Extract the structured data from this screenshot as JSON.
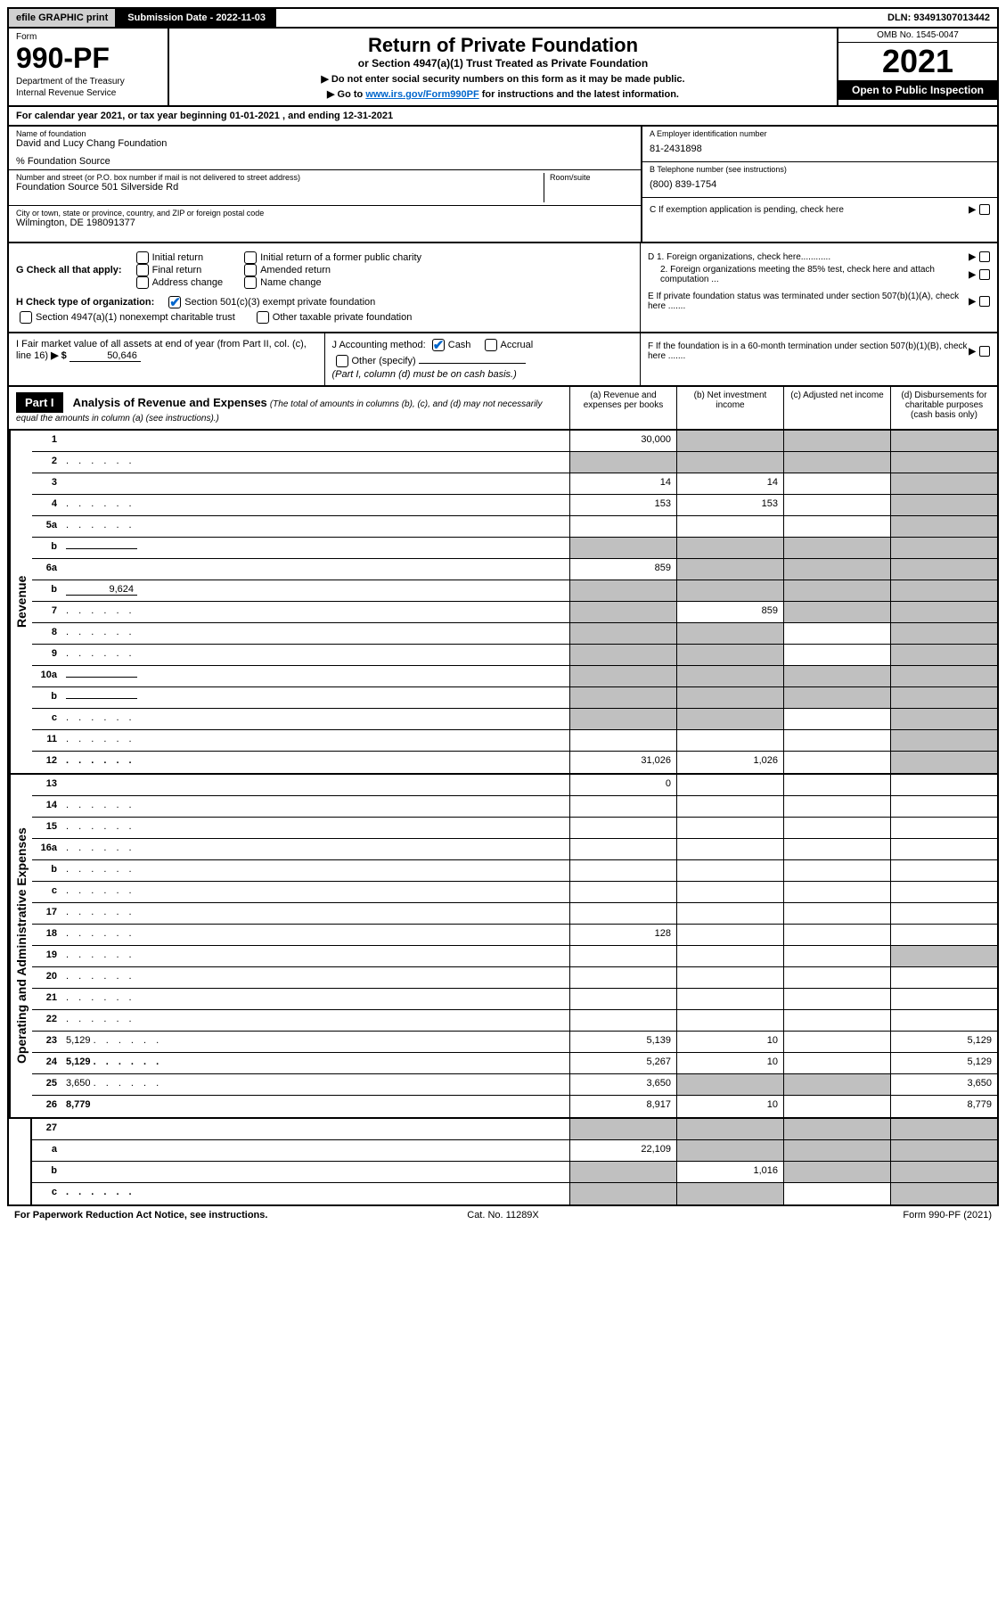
{
  "topbar": {
    "efile": "efile GRAPHIC print",
    "subdate_label": "Submission Date - 2022-11-03",
    "dln": "DLN: 93491307013442"
  },
  "header": {
    "form_label": "Form",
    "form_num": "990-PF",
    "dept1": "Department of the Treasury",
    "dept2": "Internal Revenue Service",
    "title": "Return of Private Foundation",
    "subtitle": "or Section 4947(a)(1) Trust Treated as Private Foundation",
    "instr1": "▶ Do not enter social security numbers on this form as it may be made public.",
    "instr2_pre": "▶ Go to ",
    "instr2_link": "www.irs.gov/Form990PF",
    "instr2_post": " for instructions and the latest information.",
    "omb": "OMB No. 1545-0047",
    "year": "2021",
    "open_insp": "Open to Public Inspection"
  },
  "cal_year": "For calendar year 2021, or tax year beginning 01-01-2021          , and ending 12-31-2021",
  "info": {
    "name_lbl": "Name of foundation",
    "name_val": "David and Lucy Chang Foundation",
    "co_lbl": "% Foundation Source",
    "addr_lbl": "Number and street (or P.O. box number if mail is not delivered to street address)",
    "addr_val": "Foundation Source 501 Silverside Rd",
    "room_lbl": "Room/suite",
    "city_lbl": "City or town, state or province, country, and ZIP or foreign postal code",
    "city_val": "Wilmington, DE  198091377",
    "a_lbl": "A Employer identification number",
    "a_val": "81-2431898",
    "b_lbl": "B Telephone number (see instructions)",
    "b_val": "(800) 839-1754",
    "c_lbl": "C If exemption application is pending, check here",
    "d1_lbl": "D 1. Foreign organizations, check here............",
    "d2_lbl": "2. Foreign organizations meeting the 85% test, check here and attach computation ...",
    "e_lbl": "E  If private foundation status was terminated under section 507(b)(1)(A), check here .......",
    "f_lbl": "F  If the foundation is in a 60-month termination under section 507(b)(1)(B), check here ......."
  },
  "g": {
    "label": "G Check all that apply:",
    "opts": [
      "Initial return",
      "Final return",
      "Address change",
      "Initial return of a former public charity",
      "Amended return",
      "Name change"
    ]
  },
  "h": {
    "label": "H Check type of organization:",
    "opt1": "Section 501(c)(3) exempt private foundation",
    "opt2": "Section 4947(a)(1) nonexempt charitable trust",
    "opt3": "Other taxable private foundation"
  },
  "i": {
    "label": "I Fair market value of all assets at end of year (from Part II, col. (c), line 16)",
    "arrow": "▶ $",
    "val": "50,646"
  },
  "j": {
    "label": "J Accounting method:",
    "cash": "Cash",
    "accrual": "Accrual",
    "other": "Other (specify)",
    "note": "(Part I, column (d) must be on cash basis.)"
  },
  "part1": {
    "hdr": "Part I",
    "title": "Analysis of Revenue and Expenses",
    "title_note": " (The total of amounts in columns (b), (c), and (d) may not necessarily equal the amounts in column (a) (see instructions).)",
    "col_a": "(a) Revenue and expenses per books",
    "col_b": "(b) Net investment income",
    "col_c": "(c) Adjusted net income",
    "col_d": "(d) Disbursements for charitable purposes (cash basis only)"
  },
  "side_labels": {
    "rev": "Revenue",
    "exp": "Operating and Administrative Expenses"
  },
  "rows": [
    {
      "n": "1",
      "d": "",
      "a": "30,000",
      "b": "",
      "c": "",
      "ga": false,
      "gb": true,
      "gc": true,
      "gd": true
    },
    {
      "n": "2",
      "d": "",
      "a": "",
      "b": "",
      "c": "",
      "ga": true,
      "gb": true,
      "gc": true,
      "gd": true,
      "dots": true
    },
    {
      "n": "3",
      "d": "",
      "a": "14",
      "b": "14",
      "c": "",
      "ga": false,
      "gb": false,
      "gc": false,
      "gd": true
    },
    {
      "n": "4",
      "d": "",
      "a": "153",
      "b": "153",
      "c": "",
      "ga": false,
      "gb": false,
      "gc": false,
      "gd": true,
      "dots": true
    },
    {
      "n": "5a",
      "d": "",
      "a": "",
      "b": "",
      "c": "",
      "ga": false,
      "gb": false,
      "gc": false,
      "gd": true,
      "dots": true
    },
    {
      "n": "b",
      "d": "",
      "a": "",
      "b": "",
      "c": "",
      "ga": true,
      "gb": true,
      "gc": true,
      "gd": true,
      "sub": true
    },
    {
      "n": "6a",
      "d": "",
      "a": "859",
      "b": "",
      "c": "",
      "ga": false,
      "gb": true,
      "gc": true,
      "gd": true
    },
    {
      "n": "b",
      "d": "",
      "a": "",
      "b": "",
      "c": "",
      "ga": true,
      "gb": true,
      "gc": true,
      "gd": true,
      "sub": true,
      "subval": "9,624"
    },
    {
      "n": "7",
      "d": "",
      "a": "",
      "b": "859",
      "c": "",
      "ga": true,
      "gb": false,
      "gc": true,
      "gd": true,
      "dots": true
    },
    {
      "n": "8",
      "d": "",
      "a": "",
      "b": "",
      "c": "",
      "ga": true,
      "gb": true,
      "gc": false,
      "gd": true,
      "dots": true
    },
    {
      "n": "9",
      "d": "",
      "a": "",
      "b": "",
      "c": "",
      "ga": true,
      "gb": true,
      "gc": false,
      "gd": true,
      "dots": true
    },
    {
      "n": "10a",
      "d": "",
      "a": "",
      "b": "",
      "c": "",
      "ga": true,
      "gb": true,
      "gc": true,
      "gd": true,
      "sub": true
    },
    {
      "n": "b",
      "d": "",
      "a": "",
      "b": "",
      "c": "",
      "ga": true,
      "gb": true,
      "gc": true,
      "gd": true,
      "sub": true,
      "dots": true
    },
    {
      "n": "c",
      "d": "",
      "a": "",
      "b": "",
      "c": "",
      "ga": true,
      "gb": true,
      "gc": false,
      "gd": true,
      "dots": true
    },
    {
      "n": "11",
      "d": "",
      "a": "",
      "b": "",
      "c": "",
      "ga": false,
      "gb": false,
      "gc": false,
      "gd": true,
      "dots": true
    },
    {
      "n": "12",
      "d": "",
      "a": "31,026",
      "b": "1,026",
      "c": "",
      "ga": false,
      "gb": false,
      "gc": false,
      "gd": true,
      "bold": true,
      "dots": true
    }
  ],
  "exp_rows": [
    {
      "n": "13",
      "d": "",
      "a": "0",
      "b": "",
      "c": "",
      "ga": false,
      "gb": false,
      "gc": false,
      "gd": false
    },
    {
      "n": "14",
      "d": "",
      "a": "",
      "b": "",
      "c": "",
      "ga": false,
      "gb": false,
      "gc": false,
      "gd": false,
      "dots": true
    },
    {
      "n": "15",
      "d": "",
      "a": "",
      "b": "",
      "c": "",
      "ga": false,
      "gb": false,
      "gc": false,
      "gd": false,
      "dots": true
    },
    {
      "n": "16a",
      "d": "",
      "a": "",
      "b": "",
      "c": "",
      "ga": false,
      "gb": false,
      "gc": false,
      "gd": false,
      "dots": true
    },
    {
      "n": "b",
      "d": "",
      "a": "",
      "b": "",
      "c": "",
      "ga": false,
      "gb": false,
      "gc": false,
      "gd": false,
      "dots": true
    },
    {
      "n": "c",
      "d": "",
      "a": "",
      "b": "",
      "c": "",
      "ga": false,
      "gb": false,
      "gc": false,
      "gd": false,
      "dots": true
    },
    {
      "n": "17",
      "d": "",
      "a": "",
      "b": "",
      "c": "",
      "ga": false,
      "gb": false,
      "gc": false,
      "gd": false,
      "dots": true
    },
    {
      "n": "18",
      "d": "",
      "a": "128",
      "b": "",
      "c": "",
      "ga": false,
      "gb": false,
      "gc": false,
      "gd": false,
      "dots": true
    },
    {
      "n": "19",
      "d": "",
      "a": "",
      "b": "",
      "c": "",
      "ga": false,
      "gb": false,
      "gc": false,
      "gd": true,
      "dots": true
    },
    {
      "n": "20",
      "d": "",
      "a": "",
      "b": "",
      "c": "",
      "ga": false,
      "gb": false,
      "gc": false,
      "gd": false,
      "dots": true
    },
    {
      "n": "21",
      "d": "",
      "a": "",
      "b": "",
      "c": "",
      "ga": false,
      "gb": false,
      "gc": false,
      "gd": false,
      "dots": true
    },
    {
      "n": "22",
      "d": "",
      "a": "",
      "b": "",
      "c": "",
      "ga": false,
      "gb": false,
      "gc": false,
      "gd": false,
      "dots": true
    },
    {
      "n": "23",
      "d": "5,129",
      "a": "5,139",
      "b": "10",
      "c": "",
      "ga": false,
      "gb": false,
      "gc": false,
      "gd": false,
      "dots": true
    },
    {
      "n": "24",
      "d": "5,129",
      "a": "5,267",
      "b": "10",
      "c": "",
      "ga": false,
      "gb": false,
      "gc": false,
      "gd": false,
      "bold": true,
      "dots": true
    },
    {
      "n": "25",
      "d": "3,650",
      "a": "3,650",
      "b": "",
      "c": "",
      "ga": false,
      "gb": true,
      "gc": true,
      "gd": false,
      "dots": true
    },
    {
      "n": "26",
      "d": "8,779",
      "a": "8,917",
      "b": "10",
      "c": "",
      "ga": false,
      "gb": false,
      "gc": false,
      "gd": false,
      "bold": true
    }
  ],
  "foot_rows": [
    {
      "n": "27",
      "d": "",
      "a": "",
      "b": "",
      "c": "",
      "ga": true,
      "gb": true,
      "gc": true,
      "gd": true
    },
    {
      "n": "a",
      "d": "",
      "a": "22,109",
      "b": "",
      "c": "",
      "ga": false,
      "gb": true,
      "gc": true,
      "gd": true,
      "bold": true
    },
    {
      "n": "b",
      "d": "",
      "a": "",
      "b": "1,016",
      "c": "",
      "ga": true,
      "gb": false,
      "gc": true,
      "gd": true,
      "bold": true
    },
    {
      "n": "c",
      "d": "",
      "a": "",
      "b": "",
      "c": "",
      "ga": true,
      "gb": true,
      "gc": false,
      "gd": true,
      "bold": true,
      "dots": true
    }
  ],
  "footer": {
    "left": "For Paperwork Reduction Act Notice, see instructions.",
    "mid": "Cat. No. 11289X",
    "right": "Form 990-PF (2021)"
  }
}
